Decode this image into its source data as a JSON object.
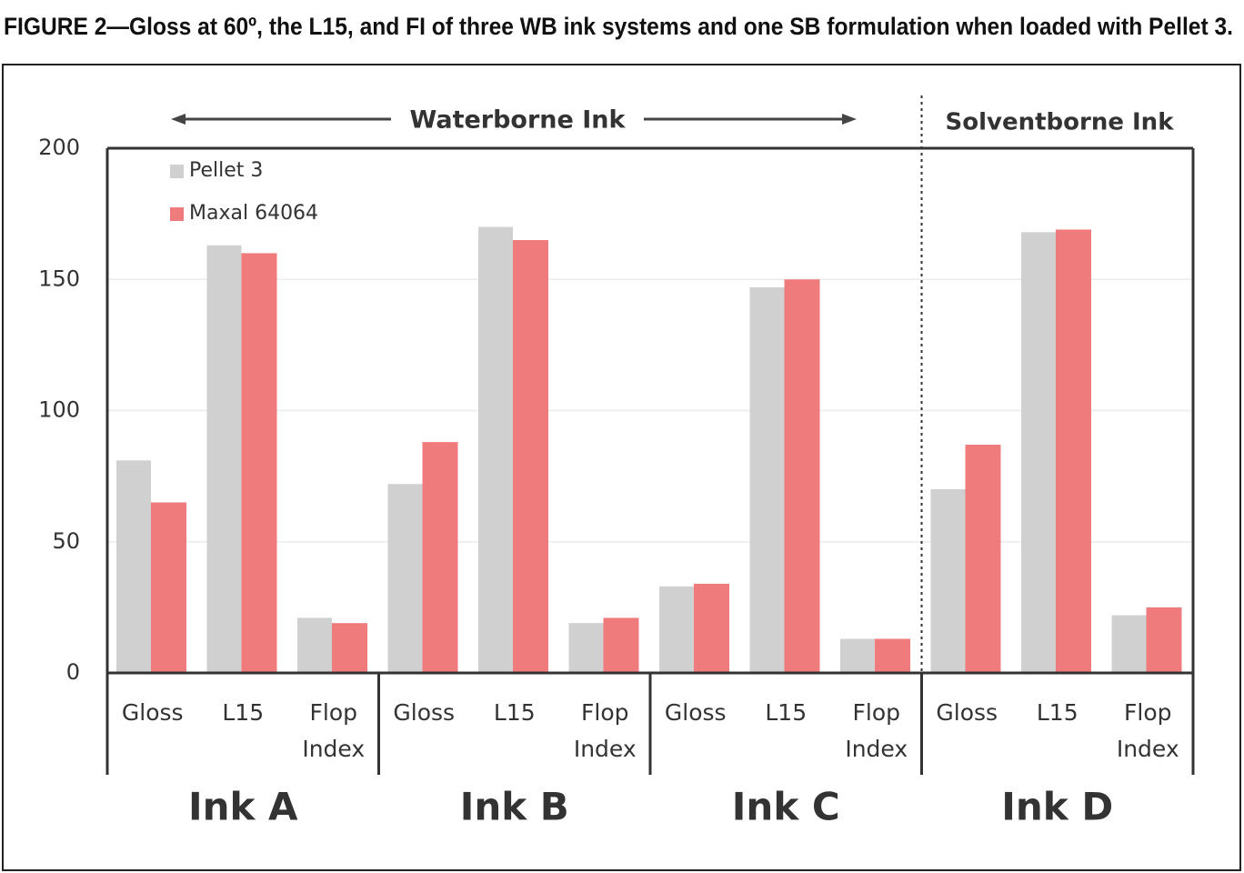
{
  "chart_data": {
    "type": "bar",
    "title": "FIGURE 2—Gloss at 60º, the L15, and FI of three WB ink systems and one SB formulation when loaded with Pellet 3.",
    "categories": [
      "Gloss",
      "L15",
      "Flop Index",
      "Gloss",
      "L15",
      "Flop Index",
      "Gloss",
      "L15",
      "Flop Index",
      "Gloss",
      "L15",
      "Flop Index"
    ],
    "groups": [
      "Ink A",
      "Ink B",
      "Ink C",
      "Ink D"
    ],
    "annotations": [
      "Waterborne Ink",
      "Solventborne Ink"
    ],
    "series": [
      {
        "name": "Pellet 3",
        "color": "#d1d0d0",
        "values": [
          81,
          163,
          21,
          72,
          170,
          19,
          33,
          147,
          13,
          70,
          168,
          22
        ]
      },
      {
        "name": "Maxal 64064",
        "color": "#f07b7d",
        "values": [
          65,
          160,
          19,
          88,
          165,
          21,
          34,
          150,
          13,
          87,
          169,
          25
        ]
      }
    ],
    "ylim": [
      0,
      200
    ],
    "yticks": [
      0,
      50,
      100,
      150,
      200
    ],
    "grid": true,
    "legend": "upper left"
  }
}
